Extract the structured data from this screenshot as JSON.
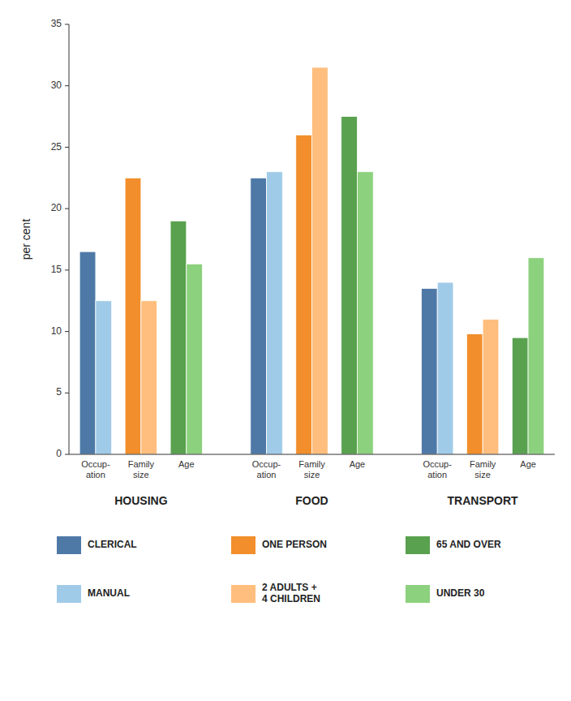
{
  "chart_data": {
    "type": "bar",
    "ylabel": "per cent",
    "categories": [
      "HOUSING",
      "FOOD",
      "TRANSPORT"
    ],
    "subcategories": [
      "Occup-\nation",
      "Family\nsize",
      "Age"
    ],
    "series": [
      {
        "name": "CLERICAL",
        "color": "#4e79a7",
        "values": [
          16.5,
          22.5,
          13.5
        ]
      },
      {
        "name": "MANUAL",
        "color": "#a0cbe8",
        "values": [
          12.5,
          23.0,
          14.0
        ]
      },
      {
        "name": "ONE PERSON",
        "color": "#f28e2b",
        "values": [
          22.5,
          26.0,
          9.8
        ]
      },
      {
        "name": "2 ADULTS +\n4 CHILDREN",
        "color": "#ffbe7d",
        "values": [
          12.5,
          31.5,
          11.0
        ]
      },
      {
        "name": "65 AND OVER",
        "color": "#59a14f",
        "values": [
          19.0,
          27.5,
          9.5
        ]
      },
      {
        "name": "UNDER 30",
        "color": "#8cd17d",
        "values": [
          15.5,
          23.0,
          16.0
        ]
      }
    ],
    "ylim": [
      0,
      35
    ],
    "yticks": [
      0,
      5,
      10,
      15,
      20,
      25,
      30,
      35
    ],
    "grid": false,
    "legend": "bottom"
  }
}
